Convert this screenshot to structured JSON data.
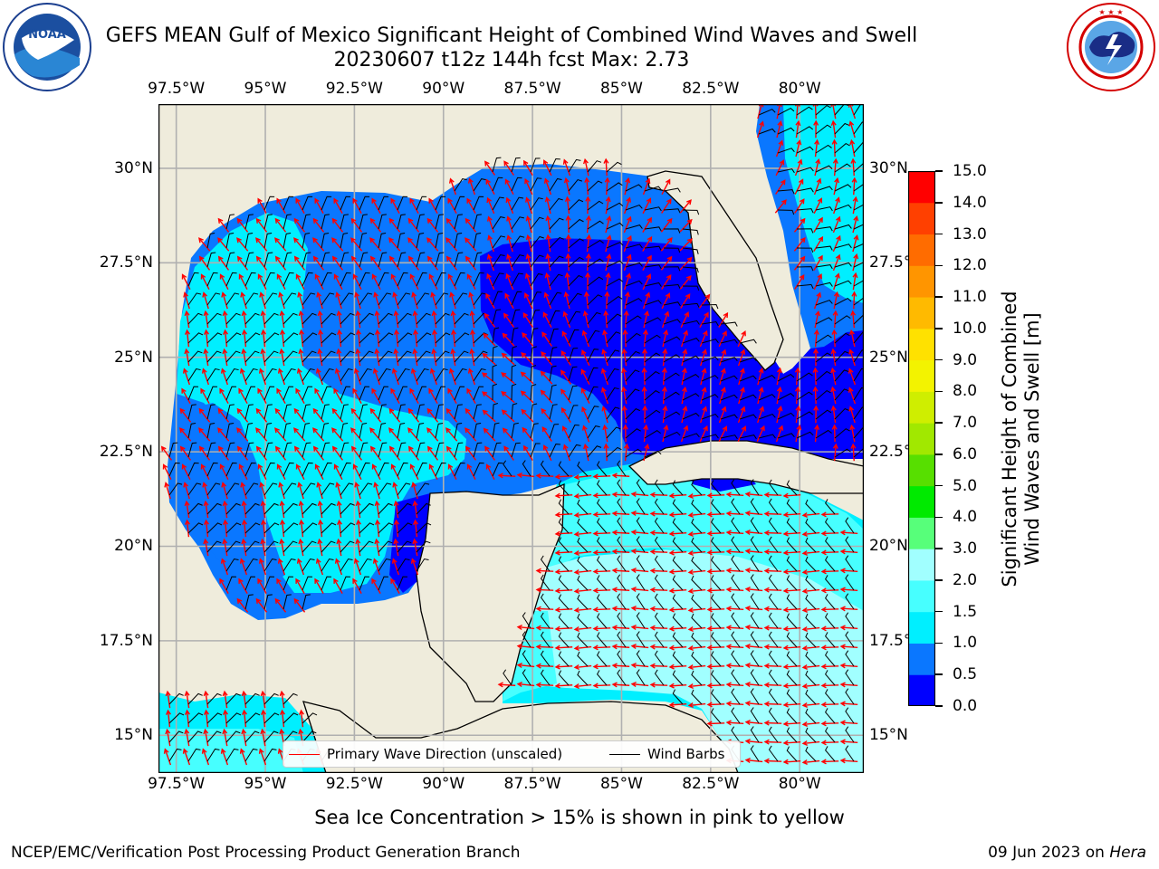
{
  "header": {
    "title_line1": "GEFS MEAN Gulf of Mexico Significant Height of Combined Wind Waves and Swell",
    "title_line2": "20230607 t12z 144h fcst   Max: 2.73"
  },
  "logos": {
    "left": {
      "text": "NOAA",
      "ring_text": "NATIONAL OCEANIC AND ATMOSPHERIC ADMINISTRATION",
      "ring_text_bottom": "U.S. DEPARTMENT OF COMMERCE"
    },
    "right": {
      "ring_text": "NATIONAL WEATHER SERVICE"
    }
  },
  "map": {
    "lon_labels": [
      "97.5°W",
      "95°W",
      "92.5°W",
      "90°W",
      "87.5°W",
      "85°W",
      "82.5°W",
      "80°W"
    ],
    "lat_labels": [
      "30°N",
      "27.5°N",
      "25°N",
      "22.5°N",
      "20°N",
      "17.5°N",
      "15°N"
    ],
    "lon_values": [
      -97.5,
      -95,
      -92.5,
      -90,
      -87.5,
      -85,
      -82.5,
      -80
    ],
    "lat_values": [
      30,
      27.5,
      25,
      22.5,
      20,
      17.5,
      15
    ],
    "extent": {
      "lon_min": -98,
      "lon_max": -78.2,
      "lat_min": 14,
      "lat_max": 31.7
    },
    "land_color": "#efecdc",
    "grid_color": "#b0b0b0",
    "wave_direction_color": "#ff0000",
    "wind_barb_color": "#000000"
  },
  "legend": {
    "primary_wave_label": "Primary Wave Direction (unscaled)",
    "wind_barbs_label": "Wind Barbs"
  },
  "colorbar": {
    "title_line1": "Significant Height of Combined",
    "title_line2": "Wind Waves and Swell [m]",
    "tick_labels": [
      "0.0",
      "0.5",
      "1.0",
      "1.5",
      "2.0",
      "3.0",
      "4.0",
      "5.0",
      "6.0",
      "7.0",
      "8.0",
      "9.0",
      "10.0",
      "11.0",
      "12.0",
      "13.0",
      "14.0",
      "15.0"
    ],
    "colors": [
      "#0000ff",
      "#0a77ff",
      "#00efff",
      "#47ffff",
      "#a1ffff",
      "#57ff7a",
      "#00ea00",
      "#57df00",
      "#a1e800",
      "#cfee00",
      "#f3f300",
      "#ffe100",
      "#ffba00",
      "#ff9500",
      "#ff6c00",
      "#ff4000",
      "#ff0000"
    ]
  },
  "footer": {
    "subcaption": "Sea Ice Concentration > 15% is shown in pink to yellow",
    "left_text": "NCEP/EMC/Verification Post Processing Product Generation Branch",
    "right_text": "09 Jun 2023 on",
    "right_host": "Hera"
  }
}
